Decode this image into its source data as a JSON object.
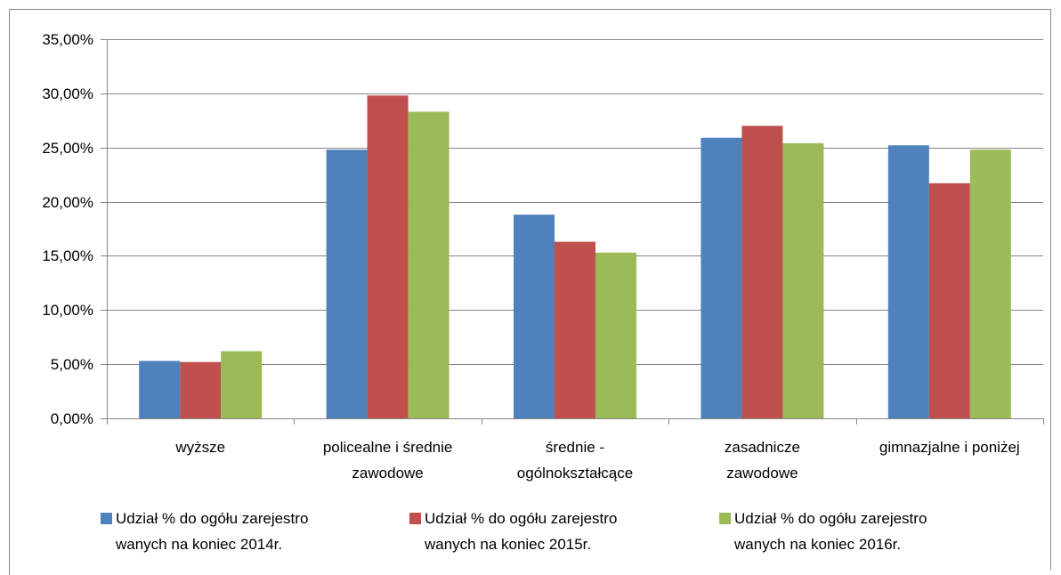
{
  "chart_data": {
    "type": "bar",
    "categories": [
      "wyższe",
      "policealne i średnie\nzawodowe",
      "średnie -\nogólnokształcące",
      "zasadnicze\nzawodowe",
      "gimnazjalne i poniżej"
    ],
    "series": [
      {
        "name": "Udział % do ogółu zarejestro\nwanych na koniec 2014r.",
        "color": "#4f81bd",
        "values": [
          5.3,
          24.8,
          18.8,
          25.9,
          25.2
        ]
      },
      {
        "name": "Udział % do ogółu zarejestro\nwanych na koniec 2015r.",
        "color": "#c0504d",
        "values": [
          5.2,
          29.8,
          16.3,
          27.0,
          21.7
        ]
      },
      {
        "name": "Udział % do ogółu zarejestro\nwanych na koniec 2016r.",
        "color": "#9bbb59",
        "values": [
          6.2,
          28.3,
          15.3,
          25.4,
          24.8
        ]
      }
    ],
    "ylim": [
      0,
      35
    ],
    "yticks": [
      {
        "value": 0,
        "label": "0,00%"
      },
      {
        "value": 5,
        "label": "5,00%"
      },
      {
        "value": 10,
        "label": "10,00%"
      },
      {
        "value": 15,
        "label": "15,00%"
      },
      {
        "value": 20,
        "label": "20,00%"
      },
      {
        "value": 25,
        "label": "25,00%"
      },
      {
        "value": 30,
        "label": "30,00%"
      },
      {
        "value": 35,
        "label": "35,00%"
      }
    ],
    "grid": true,
    "legend": "bottom"
  }
}
